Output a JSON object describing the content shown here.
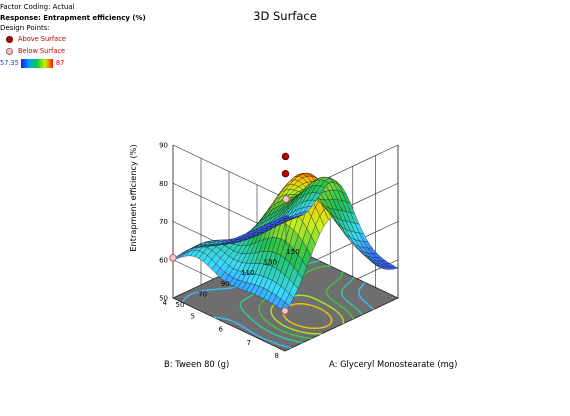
{
  "info": {
    "factor_coding": "Factor Coding: Actual",
    "response": "Response: Entrapment efficiency (%)",
    "design_points_label": "Design Points:",
    "above_label": "Above Surface",
    "below_label": "Below Surface",
    "scale_min": "57.35",
    "scale_max": "87"
  },
  "chart_data": {
    "type": "surface",
    "title": "3D Surface",
    "xlabel": "A: Glyceryl Monostearate (mg)",
    "ylabel": "B: Tween 80 (g)",
    "zlabel": "Entrapment efficiency (%)",
    "x_ticks": [
      "50",
      "70",
      "90",
      "110",
      "130",
      "150"
    ],
    "y_ticks": [
      "4",
      "5",
      "6",
      "7",
      "8"
    ],
    "z_ticks": [
      "50",
      "60",
      "70",
      "80",
      "90"
    ],
    "xlim": [
      50,
      150
    ],
    "ylim": [
      4,
      8
    ],
    "zlim": [
      50,
      90
    ],
    "color_range": [
      57.35,
      87
    ],
    "design_points": [
      {
        "x": 100,
        "y": 6,
        "z": 87,
        "position": "above"
      },
      {
        "x": 100,
        "y": 6,
        "z": 82.5,
        "position": "above"
      },
      {
        "x": 50,
        "y": 8,
        "z": 60.5,
        "position": "below"
      },
      {
        "x": 150,
        "y": 4,
        "z": 62,
        "position": "below"
      },
      {
        "x": 50,
        "y": 4,
        "z": 60.5,
        "position": "below"
      }
    ]
  }
}
